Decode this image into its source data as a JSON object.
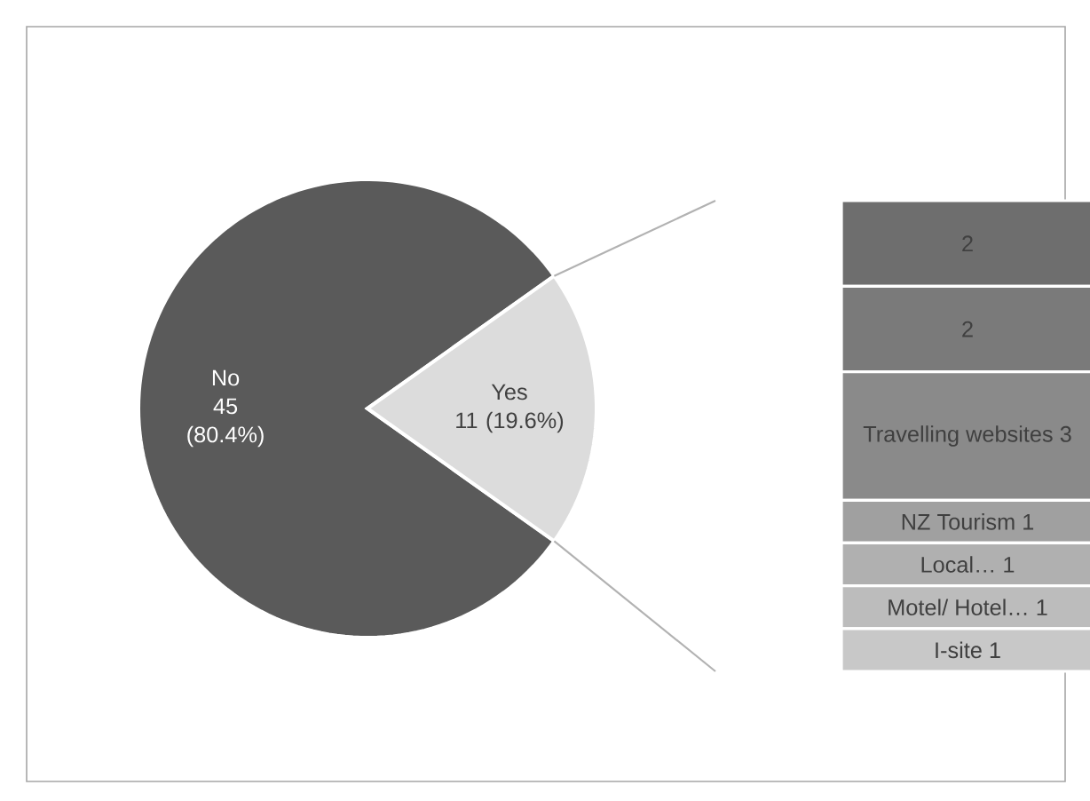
{
  "chart_data": [
    {
      "type": "pie",
      "categories": [
        "No",
        "Yes"
      ],
      "values": [
        45,
        11
      ],
      "colors": [
        "#5a5a5a",
        "#dcdcdc"
      ],
      "value_labels": [
        "45 (80.4%)",
        "11 (19.6%)"
      ]
    },
    {
      "type": "bar",
      "stacked": true,
      "categories": [
        null
      ],
      "data_labels": true,
      "series": [
        {
          "name": "I-site",
          "color": "#c8c8c8",
          "values": [
            1
          ]
        },
        {
          "name": "Motel/ Hotel…",
          "color": "#bcbcbc",
          "values": [
            1
          ]
        },
        {
          "name": "Local…",
          "color": "#b0b0b0",
          "values": [
            1
          ]
        },
        {
          "name": "NZ Tourism",
          "color": "#a0a0a0",
          "values": [
            1
          ]
        },
        {
          "name": "Travelling websites",
          "color": "#8a8a8a",
          "values": [
            3
          ]
        },
        {
          "color": "#7a7a7a",
          "values": [
            2
          ]
        },
        {
          "color": "#6e6e6e",
          "values": [
            2
          ]
        }
      ]
    }
  ]
}
